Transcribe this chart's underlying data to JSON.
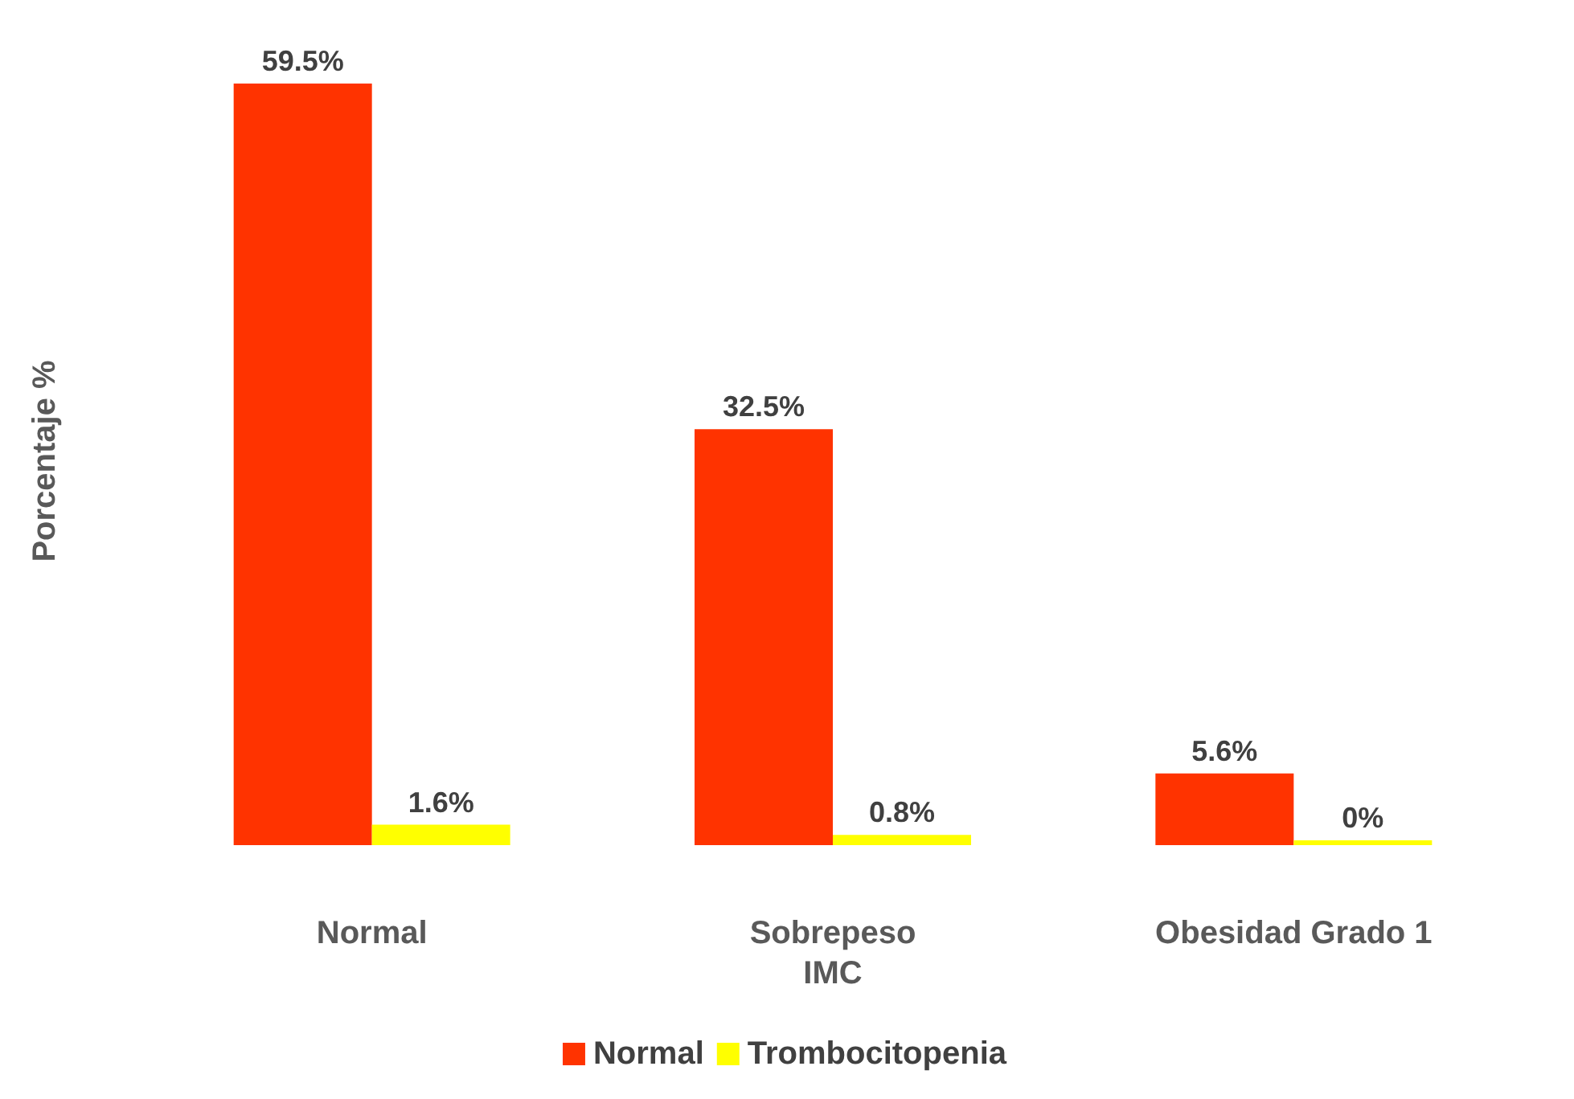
{
  "chart_data": {
    "type": "bar",
    "xlabel": "IMC",
    "ylabel": "Porcentaje %",
    "categories": [
      "Normal",
      "Sobrepeso",
      "Obesidad Grado 1"
    ],
    "series": [
      {
        "name": "Normal",
        "color": "#ff3300",
        "values": [
          59.5,
          32.5,
          5.6
        ],
        "value_labels": [
          "59.5%",
          "32.5%",
          "5.6%"
        ]
      },
      {
        "name": "Trombocitopenia",
        "color": "#ffff00",
        "values": [
          1.6,
          0.8,
          0
        ],
        "value_labels": [
          "1.6%",
          "0.8%",
          "0%"
        ]
      }
    ],
    "legend": "bottom",
    "grid": false
  }
}
